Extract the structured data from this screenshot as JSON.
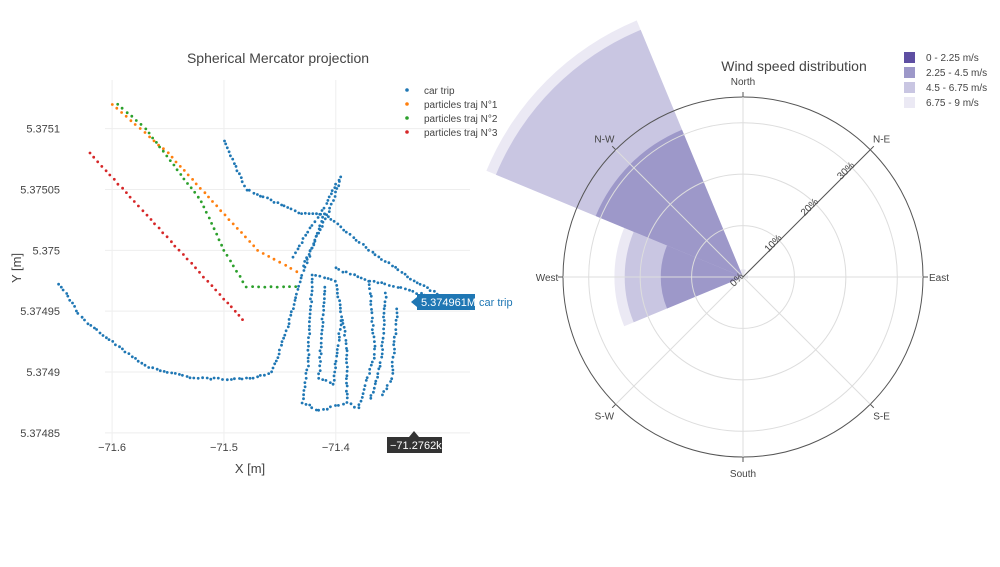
{
  "chart_data": [
    {
      "type": "scatter",
      "title": "Spherical Mercator projection",
      "xlabel": "X [m]",
      "ylabel": "Y [m]",
      "xlim": [
        -71.66,
        -71.28
      ],
      "ylim": [
        5.37484,
        5.37514
      ],
      "xticks": [
        -71.6,
        -71.5,
        -71.4
      ],
      "xtick_labels": [
        "−71.6",
        "−71.5",
        "−71.4"
      ],
      "yticks": [
        5.37485,
        5.3749,
        5.37495,
        5.375,
        5.37505,
        5.3751
      ],
      "ytick_labels": [
        "5.37485",
        "5.3749",
        "5.37495",
        "5.375",
        "5.37505",
        "5.3751"
      ],
      "grid": true,
      "legend_position": "top-right",
      "hover_x_label": "−71.2762k",
      "hover_y_label": "5.374961M",
      "hover_series_label": "car trip",
      "series": [
        {
          "name": "car trip",
          "color": "#1f77b4",
          "segments": [
            [
              [
                -71.41,
                5.37503
              ],
              [
                -71.43,
                5.37498
              ],
              [
                -71.442,
                5.37494
              ],
              [
                -71.457,
                5.3749
              ],
              [
                -71.47,
                5.374896
              ],
              [
                -71.49,
                5.374894
              ],
              [
                -71.53,
                5.374895
              ],
              [
                -71.57,
                5.374905
              ],
              [
                -71.6,
                5.374925
              ],
              [
                -71.622,
                5.37494
              ],
              [
                -71.63,
                5.374948
              ],
              [
                -71.645,
                5.37497
              ],
              [
                -71.65,
                5.374975
              ]
            ],
            [
              [
                -71.438,
                5.374995
              ],
              [
                -71.425,
                5.375015
              ],
              [
                -71.41,
                5.375035
              ],
              [
                -71.4,
                5.375055
              ],
              [
                -71.395,
                5.37506
              ]
            ],
            [
              [
                -71.395,
                5.37506
              ],
              [
                -71.405,
                5.375035
              ],
              [
                -71.42,
                5.375005
              ],
              [
                -71.43,
                5.374985
              ]
            ],
            [
              [
                -71.5,
                5.37509
              ],
              [
                -71.48,
                5.37505
              ],
              [
                -71.455,
                5.37504
              ],
              [
                -71.43,
                5.37503
              ],
              [
                -71.41,
                5.37503
              ]
            ],
            [
              [
                -71.41,
                5.37503
              ],
              [
                -71.37,
                5.375
              ],
              [
                -71.33,
                5.374975
              ],
              [
                -71.3,
                5.37496
              ],
              [
                -71.29,
                5.37496
              ]
            ],
            [
              [
                -71.4,
                5.374985
              ],
              [
                -71.37,
                5.374975
              ],
              [
                -71.345,
                5.37497
              ],
              [
                -71.31,
                5.37496
              ]
            ],
            [
              [
                -71.421,
                5.37498
              ],
              [
                -71.425,
                5.374905
              ],
              [
                -71.43,
                5.374875
              ],
              [
                -71.415,
                5.374868
              ],
              [
                -71.39,
                5.374875
              ],
              [
                -71.39,
                5.37492
              ],
              [
                -71.4,
                5.374975
              ],
              [
                -71.421,
                5.37498
              ]
            ],
            [
              [
                -71.41,
                5.37497
              ],
              [
                -71.415,
                5.374895
              ],
              [
                -71.402,
                5.37489
              ],
              [
                -71.395,
                5.374945
              ]
            ],
            [
              [
                -71.37,
                5.374975
              ],
              [
                -71.365,
                5.374915
              ],
              [
                -71.38,
                5.37487
              ],
              [
                -71.39,
                5.374875
              ]
            ],
            [
              [
                -71.355,
                5.374965
              ],
              [
                -71.36,
                5.374905
              ],
              [
                -71.37,
                5.374875
              ]
            ],
            [
              [
                -71.345,
                5.374952
              ],
              [
                -71.35,
                5.374895
              ],
              [
                -71.36,
                5.374878
              ]
            ]
          ]
        },
        {
          "name": "particles traj N°1",
          "color": "#ff7f0e",
          "segments": [
            [
              [
                -71.6,
                5.37512
              ],
              [
                -71.55,
                5.37508
              ],
              [
                -71.51,
                5.37504
              ],
              [
                -71.47,
                5.375
              ],
              [
                -71.43,
                5.37498
              ]
            ]
          ]
        },
        {
          "name": "particles traj N°2",
          "color": "#2ca02c",
          "segments": [
            [
              [
                -71.595,
                5.37512
              ],
              [
                -71.57,
                5.3751
              ],
              [
                -71.545,
                5.37507
              ],
              [
                -71.52,
                5.37504
              ],
              [
                -71.5,
                5.375
              ],
              [
                -71.48,
                5.37497
              ],
              [
                -71.43,
                5.37497
              ]
            ]
          ]
        },
        {
          "name": "particles traj N°3",
          "color": "#d62728",
          "segments": [
            [
              [
                -71.62,
                5.37508
              ],
              [
                -71.58,
                5.37504
              ],
              [
                -71.54,
                5.375
              ],
              [
                -71.5,
                5.37496
              ],
              [
                -71.48,
                5.37494
              ]
            ]
          ]
        }
      ]
    },
    {
      "type": "barpolar",
      "title": "Wind speed distribution",
      "directions": [
        "North",
        "N-E",
        "East",
        "S-E",
        "South",
        "S-W",
        "West",
        "N-W"
      ],
      "radial_ticks": [
        0,
        10,
        20,
        30
      ],
      "radial_tick_labels": [
        "0%",
        "10%",
        "20%",
        "30%"
      ],
      "radial_range": [
        0,
        35
      ],
      "legend_position": "top-right",
      "series": [
        {
          "name": "0 - 2.25 m/s",
          "color": "#5e4fa2",
          "values": [
            0,
            0,
            0,
            0,
            0,
            0,
            0,
            0
          ]
        },
        {
          "name": "2.25 - 4.5 m/s",
          "color": "#9d98c9",
          "values": [
            0,
            0,
            0,
            0,
            0,
            0,
            16,
            31
          ]
        },
        {
          "name": "4.5 - 6.75 m/s",
          "color": "#c9c6e2",
          "values": [
            0,
            0,
            0,
            0,
            0,
            0,
            7,
            21
          ]
        },
        {
          "name": "6.75 - 9 m/s",
          "color": "#ebe9f4",
          "values": [
            1.5,
            0,
            1,
            0,
            0,
            0,
            2,
            2
          ]
        }
      ]
    }
  ]
}
